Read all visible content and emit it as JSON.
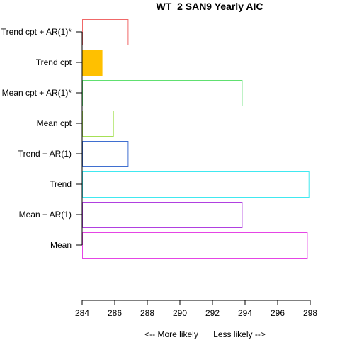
{
  "chart_data": {
    "type": "bar",
    "orientation": "horizontal",
    "title": "WT_2 SAN9 Yearly AIC",
    "xlabel_left": "<--  More likely",
    "xlabel_right": "Less likely  -->",
    "xlim": [
      284,
      298
    ],
    "x_ticks": [
      284,
      286,
      288,
      290,
      292,
      294,
      296,
      298
    ],
    "grid": false,
    "legend": "none",
    "bars": [
      {
        "label": "Mean",
        "value": 297.8,
        "color": "#e545e5",
        "filled": false
      },
      {
        "label": "Mean + AR(1)",
        "value": 293.8,
        "color": "#b040e0",
        "filled": false
      },
      {
        "label": "Trend",
        "value": 297.9,
        "color": "#40e8f0",
        "filled": false
      },
      {
        "label": "Trend + AR(1)",
        "value": 286.8,
        "color": "#3f6fd0",
        "filled": false
      },
      {
        "label": "Mean cpt",
        "value": 285.9,
        "color": "#a6e055",
        "filled": false
      },
      {
        "label": "Mean cpt + AR(1)*",
        "value": 293.8,
        "color": "#60e070",
        "filled": false
      },
      {
        "label": "Trend cpt",
        "value": 285.2,
        "color": "#ffc000",
        "filled": true
      },
      {
        "label": "Trend cpt + AR(1)*",
        "value": 286.8,
        "color": "#f06868",
        "filled": false
      }
    ]
  }
}
